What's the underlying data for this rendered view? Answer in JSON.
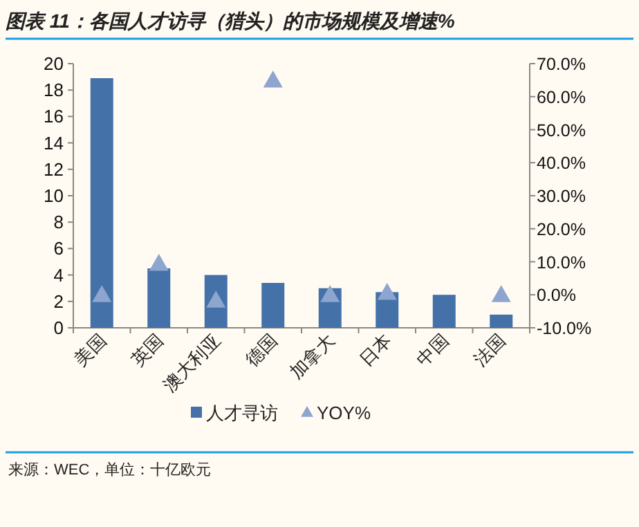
{
  "chart_data": {
    "type": "bar",
    "title": "图表 11：各国人才访寻（猎头）的市场规模及增速%",
    "categories": [
      "美国",
      "英国",
      "澳大利亚",
      "德国",
      "加拿大",
      "日本",
      "中国",
      "法国"
    ],
    "series": [
      {
        "name": "人才寻访",
        "type": "bar",
        "color": "#4472a8",
        "values": [
          18.9,
          4.5,
          4.0,
          3.4,
          3.0,
          2.7,
          2.5,
          1.0
        ]
      },
      {
        "name": "YOY%",
        "type": "scatter",
        "axis": "y2",
        "marker": "triangle",
        "color": "#8ea5d0",
        "values": [
          0,
          9.5,
          -1.7,
          65,
          0,
          0.7,
          null,
          0
        ]
      }
    ],
    "ylim": [
      0,
      20
    ],
    "yticks": [
      0,
      2,
      4,
      6,
      8,
      10,
      12,
      14,
      16,
      18,
      20
    ],
    "y2lim": [
      -10,
      70
    ],
    "y2ticks": [
      {
        "value": -10,
        "label": "-10.0%"
      },
      {
        "value": 0,
        "label": "0.0%"
      },
      {
        "value": 10,
        "label": "10.0%"
      },
      {
        "value": 20,
        "label": "20.0%"
      },
      {
        "value": 30,
        "label": "30.0%"
      },
      {
        "value": 40,
        "label": "40.0%"
      },
      {
        "value": 50,
        "label": "50.0%"
      },
      {
        "value": 60,
        "label": "60.0%"
      },
      {
        "value": 70,
        "label": "70.0%"
      }
    ],
    "legend": "bottom",
    "grid": false,
    "annotations": [
      "来源：WEC，单位：十亿欧元"
    ]
  }
}
